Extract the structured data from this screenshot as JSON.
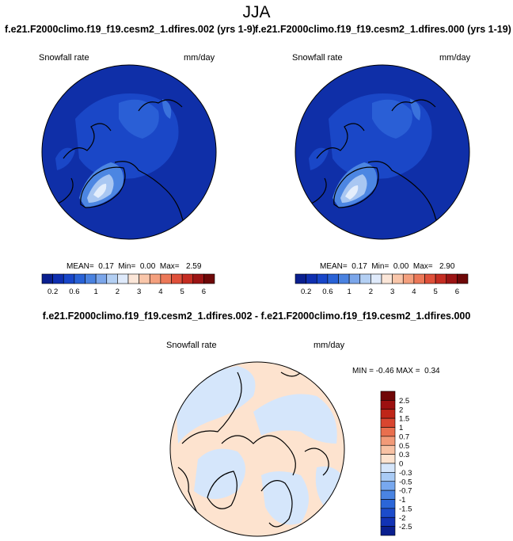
{
  "title": "JJA",
  "panels": {
    "left": {
      "header": "f.e21.F2000climo.f19_f19.cesm2_1.dfires.002 (yrs 1-9)",
      "variable": "Snowfall rate",
      "units": "mm/day",
      "stats": {
        "mean_label": "MEAN=",
        "mean": "0.17",
        "min_label": "Min=",
        "min": "0.00",
        "max_label": "Max=",
        "max": "2.59"
      }
    },
    "right": {
      "header": "f.e21.F2000climo.f19_f19.cesm2_1.dfires.000 (yrs 1-19)",
      "variable": "Snowfall rate",
      "units": "mm/day",
      "stats": {
        "mean_label": "MEAN=",
        "mean": "0.17",
        "min_label": "Min=",
        "min": "0.00",
        "max_label": "Max=",
        "max": "2.90"
      }
    },
    "diff": {
      "header": "f.e21.F2000climo.f19_f19.cesm2_1.dfires.002 - f.e21.F2000climo.f19_f19.cesm2_1.dfires.000",
      "variable": "Snowfall rate",
      "units": "mm/day",
      "stats_text": "MIN = -0.46 MAX =  0.34"
    }
  },
  "colorbar_main": {
    "colors": [
      "#0a1f8f",
      "#0f2fb0",
      "#1846c9",
      "#2962d6",
      "#4a82e0",
      "#7ba6ea",
      "#b3cff3",
      "#dfeafb",
      "#fbe6d8",
      "#f9c6aa",
      "#f4a07e",
      "#ec7858",
      "#df503a",
      "#c52d22",
      "#9c1414",
      "#6e0808"
    ],
    "labels": [
      "0.2",
      "0.6",
      "1",
      "2",
      "3",
      "4",
      "5",
      "6"
    ]
  },
  "colorbar_diff": {
    "colors": [
      "#0a1f8f",
      "#1233b5",
      "#1c4ccb",
      "#2b66d8",
      "#4a84e2",
      "#78a8ee",
      "#a9cbf5",
      "#d5e6fb",
      "#fde3cf",
      "#f8c2a4",
      "#f29a78",
      "#e96f4e",
      "#d94630",
      "#bf2618",
      "#9c1010",
      "#700606"
    ],
    "labels": [
      "2.5",
      "2",
      "1.5",
      "1",
      "0.7",
      "0.5",
      "0.3",
      "0",
      "-0.3",
      "-0.5",
      "-0.7",
      "-1",
      "-1.5",
      "-2",
      "-2.5"
    ]
  }
}
